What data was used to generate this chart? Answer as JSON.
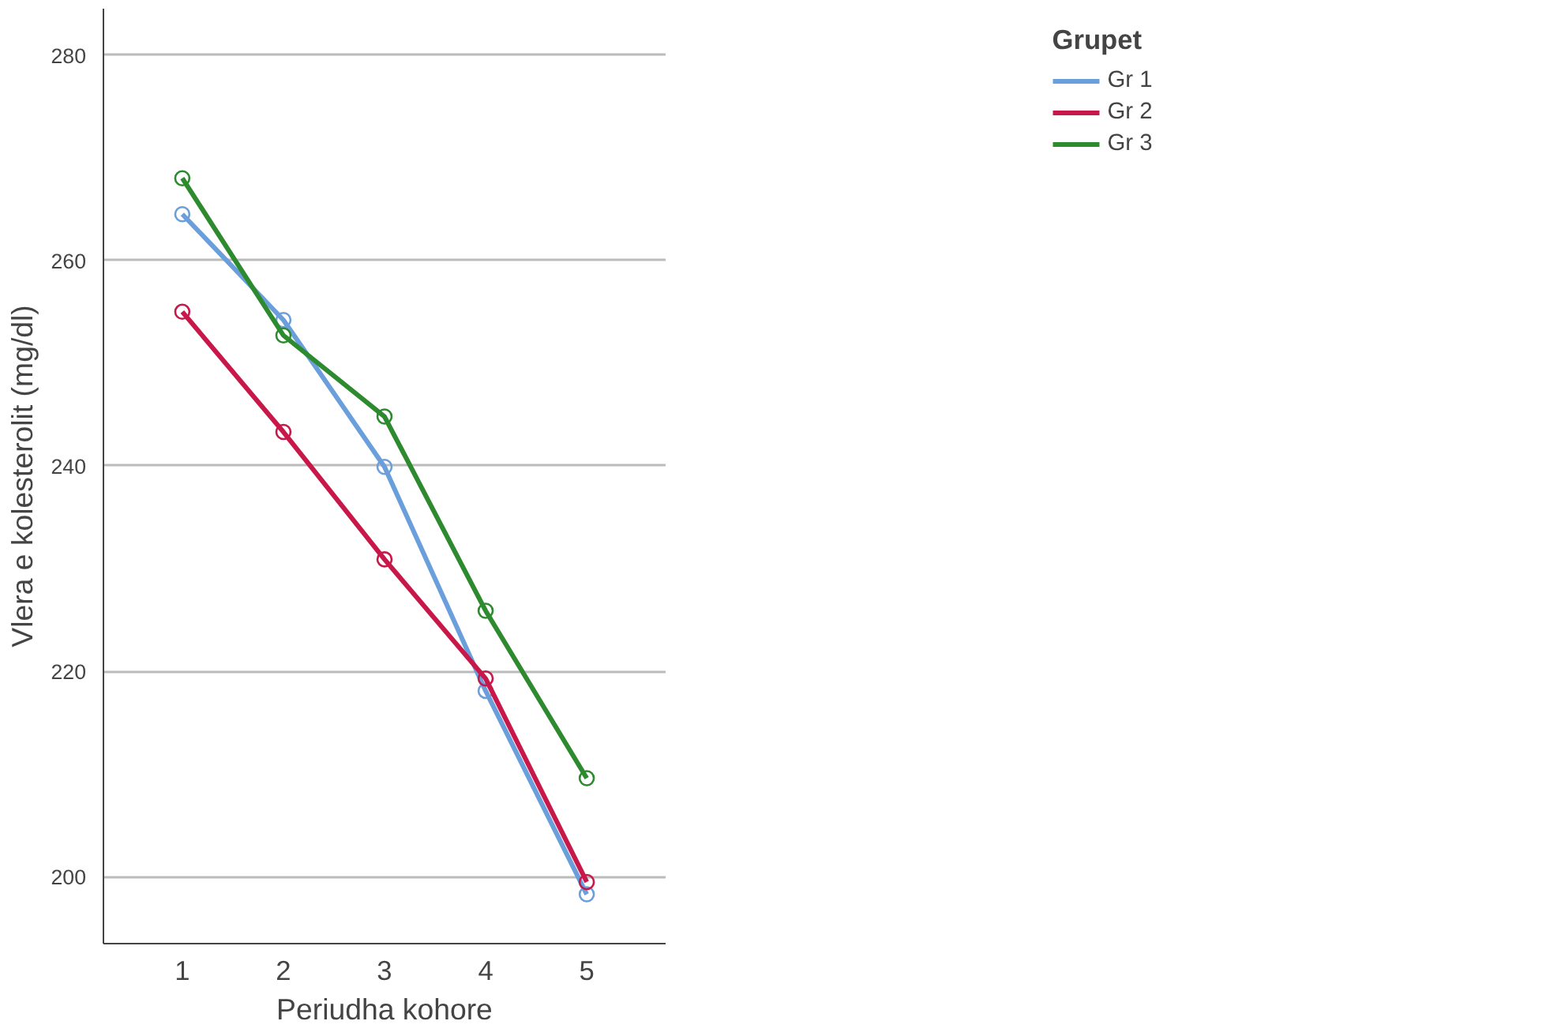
{
  "chart_data": {
    "type": "line",
    "xlabel": "Periudha kohore",
    "ylabel": "Vlera e kolesterolit (mg/dl)",
    "legend_title": "Grupet",
    "categories": [
      "1",
      "2",
      "3",
      "4",
      "5"
    ],
    "series": [
      {
        "name": "Gr 1",
        "color": "#6a9fdc",
        "values": [
          264.5,
          254.2,
          239.9,
          218.1,
          198.3
        ]
      },
      {
        "name": "Gr 2",
        "color": "#c8184a",
        "values": [
          255.0,
          243.3,
          230.9,
          219.3,
          199.5
        ]
      },
      {
        "name": "Gr 3",
        "color": "#2e8a2e",
        "values": [
          268.0,
          252.7,
          244.8,
          225.9,
          209.6
        ]
      }
    ],
    "ylim": [
      193.5,
      284.5
    ],
    "yticks": [
      200,
      220,
      240,
      260,
      280
    ],
    "grid": "y",
    "legend": "top right",
    "marker": "circle",
    "line_style": "solid"
  }
}
